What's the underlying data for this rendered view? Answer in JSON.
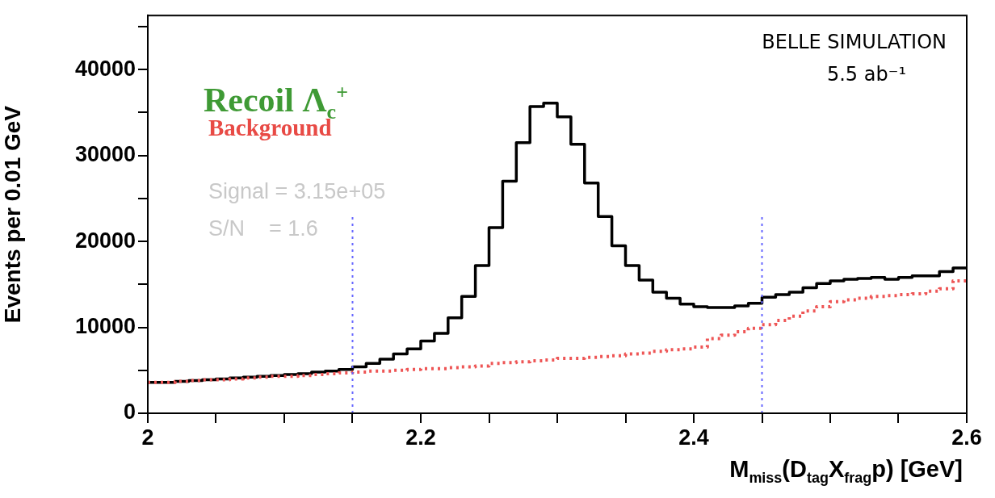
{
  "chart_data": {
    "type": "histogram",
    "xlabel": "M$_{miss}$(D$_{tag}$X$_{frag}$p) [GeV]",
    "ylabel": "Events per 0.01 GeV",
    "bins": [
      2.0,
      2.01,
      2.02,
      2.03,
      2.04,
      2.05,
      2.06,
      2.07,
      2.08,
      2.09,
      2.1,
      2.11,
      2.12,
      2.13,
      2.14,
      2.15,
      2.16,
      2.17,
      2.18,
      2.19,
      2.2,
      2.21,
      2.22,
      2.23,
      2.24,
      2.25,
      2.26,
      2.27,
      2.28,
      2.29,
      2.3,
      2.31,
      2.32,
      2.33,
      2.34,
      2.35,
      2.36,
      2.37,
      2.38,
      2.39,
      2.4,
      2.41,
      2.42,
      2.43,
      2.44,
      2.45,
      2.46,
      2.47,
      2.48,
      2.49,
      2.5,
      2.51,
      2.52,
      2.53,
      2.54,
      2.55,
      2.56,
      2.57,
      2.58,
      2.59,
      2.6
    ],
    "series": [
      {
        "color": "#000000",
        "line_style": "solid",
        "values": [
          3600,
          3600,
          3700,
          3800,
          3900,
          4000,
          4100,
          4200,
          4300,
          4400,
          4500,
          4600,
          4800,
          4900,
          5100,
          5400,
          5800,
          6300,
          6900,
          7500,
          8400,
          9300,
          11100,
          13600,
          17200,
          21600,
          27000,
          31500,
          35700,
          36100,
          34500,
          31300,
          26800,
          22900,
          19500,
          17200,
          15500,
          14100,
          13400,
          12700,
          12400,
          12300,
          12300,
          12500,
          12800,
          13500,
          13800,
          14100,
          14600,
          15100,
          15400,
          15600,
          15700,
          15800,
          15600,
          15800,
          16000,
          16000,
          16500,
          16900
        ]
      },
      {
        "color": "#ee5555",
        "line_style": "dotted",
        "values": [
          3600,
          3600,
          3700,
          3800,
          3900,
          3900,
          4000,
          4100,
          4200,
          4300,
          4300,
          4400,
          4500,
          4600,
          4700,
          4800,
          4900,
          4900,
          5000,
          5100,
          5200,
          5200,
          5300,
          5400,
          5500,
          5800,
          5900,
          6000,
          6100,
          6200,
          6400,
          6400,
          6500,
          6600,
          6700,
          6900,
          7000,
          7200,
          7400,
          7500,
          7700,
          8700,
          9100,
          9500,
          9900,
          10300,
          10800,
          11300,
          11900,
          12400,
          13000,
          13200,
          13400,
          13600,
          13700,
          13800,
          13900,
          14200,
          14500,
          15400
        ]
      }
    ],
    "xlim": [
      2.0,
      2.6
    ],
    "xticks": [
      2,
      {
        "value": 2.05,
        "label": null
      },
      {
        "value": 2.1,
        "label": null
      },
      {
        "value": 2.15,
        "label": null
      },
      2.2,
      {
        "value": 2.25,
        "label": null
      },
      {
        "value": 2.3,
        "label": null
      },
      {
        "value": 2.35,
        "label": null
      },
      2.4,
      {
        "value": 2.45,
        "label": null
      },
      {
        "value": 2.5,
        "label": null
      },
      {
        "value": 2.55,
        "label": null
      },
      2.6
    ],
    "ylim": [
      0,
      46300
    ],
    "yticks": [
      0,
      {
        "value": 5000,
        "label": null
      },
      10000,
      {
        "value": 15000,
        "label": null
      },
      20000,
      {
        "value": 25000,
        "label": null
      },
      30000,
      {
        "value": 35000,
        "label": null
      },
      40000,
      {
        "value": 45000,
        "label": null
      }
    ],
    "grid": false,
    "legend": false,
    "ref_lines": [
      {
        "axis": "x",
        "value": 2.15,
        "color": "#6666ff",
        "line_style": "dotted"
      },
      {
        "axis": "x",
        "value": 2.45,
        "color": "#6666ff",
        "line_style": "dotted"
      }
    ],
    "annotations": [
      "Recoil Λ$_{c}$$^{+}$",
      "Background",
      "Signal = 3.15e+05",
      "S/N    = 1.6",
      "BELLE SIMULATION",
      "5.5 ab⁻¹"
    ]
  }
}
